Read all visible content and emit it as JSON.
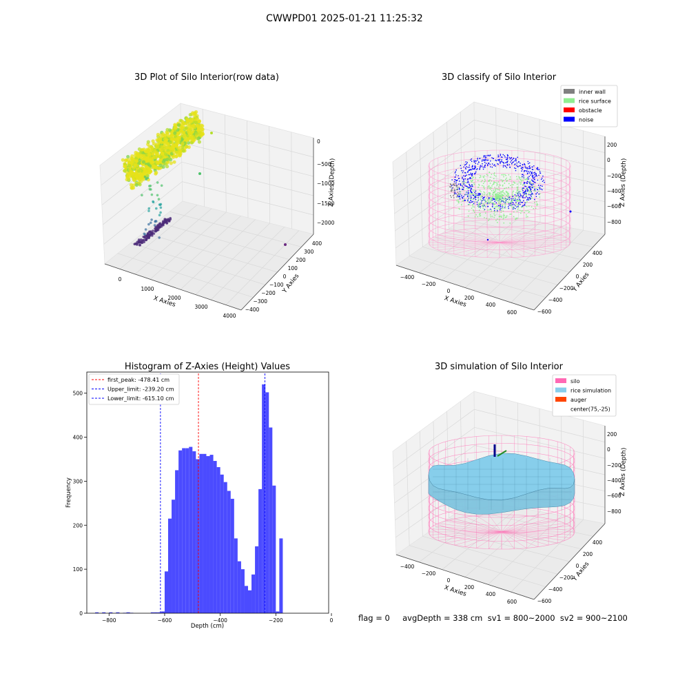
{
  "suptitle": "CWWPD01 2025-01-21 11:25:32",
  "footer": "flag = 0     avgDepth = 338 cm  sv1 = 800~2000  sv2 = 900~2100",
  "colors": {
    "inner_wall": "#808080",
    "rice_surface": "#90ee90",
    "obstacle": "#ff0000",
    "noise": "#0000ff",
    "silo": "#ff69b4",
    "rice_simulation": "#87ceeb",
    "auger": "#ff4500",
    "histogram_bar": "#4b4bff"
  },
  "chart_data": [
    {
      "type": "scatter",
      "title": "3D Plot of Silo Interior(row data)",
      "xlabel": "X Axies",
      "ylabel": "Y Axies",
      "zlabel": "Z Axies (Depth)",
      "xticks": [
        "0",
        "1000",
        "2000",
        "3000",
        "4000"
      ],
      "yticks": [
        "−400",
        "−300",
        "−200",
        "−100",
        "0",
        "100",
        "200",
        "300",
        "400"
      ],
      "zticks": [
        "0",
        "−500",
        "−1000",
        "−1500",
        "−2000"
      ],
      "xlim": [
        -300,
        4000
      ],
      "ylim": [
        -450,
        450
      ],
      "zlim": [
        -2300,
        100
      ],
      "colormap": "viridis"
    },
    {
      "type": "scatter",
      "title": "3D classify of Silo Interior",
      "xlabel": "X Axies",
      "ylabel": "Y Axies",
      "zlabel": "Z Axies (Depth)",
      "xticks": [
        "−400",
        "−200",
        "0",
        "200",
        "400",
        "600"
      ],
      "yticks": [
        "−600",
        "−400",
        "−200",
        "0",
        "200",
        "400"
      ],
      "zticks": [
        "200",
        "0",
        "−200",
        "−400",
        "−600",
        "−800"
      ],
      "legend": [
        "inner wall",
        "rice surface",
        "obstacle",
        "noise"
      ],
      "legend_loc": "upper right"
    },
    {
      "type": "bar",
      "title": "Histogram of Z-Axies (Height) Values",
      "xlabel": "Depth (cm)",
      "ylabel": "Frequency",
      "xlim": [
        -880,
        -10
      ],
      "ylim": [
        0,
        548
      ],
      "xticks": [
        -800,
        -600,
        -400,
        -200,
        0
      ],
      "yticks": [
        0,
        100,
        200,
        300,
        400,
        500
      ],
      "bin_width": 12.5,
      "bins_start": [
        -850,
        -837.5,
        -825,
        -812.5,
        -800,
        -787.5,
        -775,
        -762.5,
        -750,
        -737.5,
        -725,
        -712.5,
        -700,
        -687.5,
        -675,
        -662.5,
        -650,
        -637.5,
        -625,
        -612.5,
        -600,
        -587.5,
        -575,
        -562.5,
        -550,
        -537.5,
        -525,
        -512.5,
        -500,
        -487.5,
        -475,
        -462.5,
        -450,
        -437.5,
        -425,
        -412.5,
        -400,
        -387.5,
        -375,
        -362.5,
        -350,
        -337.5,
        -325,
        -312.5,
        -300,
        -287.5,
        -275,
        -262.5,
        -250,
        -237.5,
        -225,
        -212.5,
        -200,
        -187.5,
        -175,
        -162.5,
        -150,
        -137.5,
        -125,
        -112.5,
        -100,
        -87.5,
        -75,
        -62.5,
        -50,
        -37.5,
        -25,
        -12.5
      ],
      "counts": [
        2,
        0,
        2,
        0,
        2,
        0,
        2,
        0,
        1,
        2,
        1,
        0,
        0,
        0,
        0,
        0,
        2,
        2,
        2,
        4,
        95,
        215,
        258,
        325,
        370,
        375,
        375,
        378,
        368,
        350,
        362,
        362,
        357,
        360,
        346,
        332,
        315,
        298,
        278,
        260,
        170,
        118,
        100,
        62,
        52,
        88,
        152,
        282,
        520,
        502,
        422,
        290,
        4,
        170,
        0,
        0,
        0,
        0,
        0,
        0,
        0,
        0,
        0,
        0,
        0,
        0,
        0,
        0
      ],
      "lines": [
        {
          "label": "first_peak: -478.41 cm",
          "x": -478.41,
          "color": "#ff0000"
        },
        {
          "label": "Upper_limit: -239.20 cm",
          "x": -239.2,
          "color": "#0000ff"
        },
        {
          "label": "Lower_limit: -615.10 cm",
          "x": -615.1,
          "color": "#0000ff"
        }
      ],
      "legend_loc": "upper left"
    },
    {
      "type": "area",
      "title": "3D simulation of Silo Interior",
      "xlabel": "X Axies",
      "ylabel": "Y Axies",
      "zlabel": "Z Axies (Depth)",
      "xticks": [
        "−400",
        "−200",
        "0",
        "200",
        "400",
        "600"
      ],
      "yticks": [
        "−600",
        "−400",
        "−200",
        "0",
        "200",
        "400"
      ],
      "zticks": [
        "200",
        "0",
        "−200",
        "−400",
        "−600",
        "−800"
      ],
      "legend": [
        "silo",
        "rice simulation",
        "auger",
        "center(75,-25)"
      ],
      "legend_loc": "upper right"
    }
  ]
}
